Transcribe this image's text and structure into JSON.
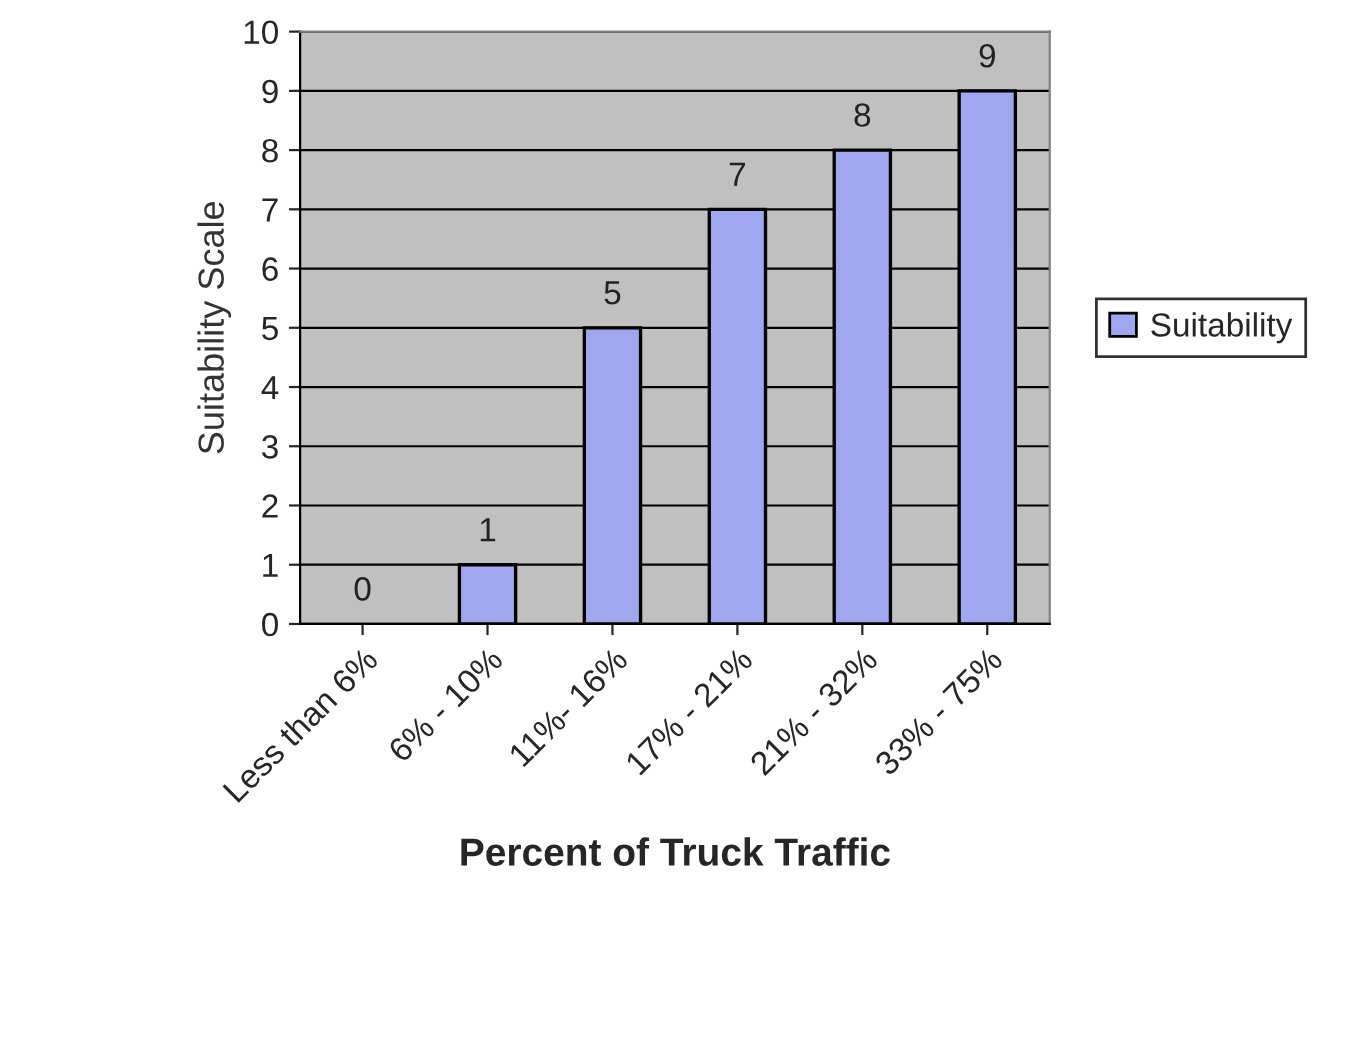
{
  "chart_data": {
    "type": "bar",
    "xlabel": "Percent of Truck Traffic",
    "ylabel": "Suitability Scale",
    "categories": [
      "Less than 6%",
      "6% - 10%",
      "11%- 16%",
      "17% - 21%",
      "21% - 32%",
      "33% - 75%"
    ],
    "series": [
      {
        "name": "Suitability",
        "color": "#9fa8ee",
        "values": [
          0,
          1,
          5,
          7,
          8,
          9
        ]
      }
    ],
    "ylim": [
      0,
      10
    ],
    "yticks": [
      0,
      1,
      2,
      3,
      4,
      5,
      6,
      7,
      8,
      9,
      10
    ],
    "grid": "y",
    "legend": "right",
    "data_labels": true
  }
}
